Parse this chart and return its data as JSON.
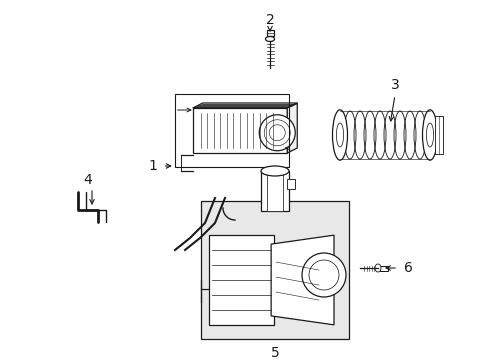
{
  "bg_color": "#ffffff",
  "line_color": "#1a1a1a",
  "gray_fill": "#e8e8e8",
  "fig_w": 4.89,
  "fig_h": 3.6,
  "dpi": 100
}
